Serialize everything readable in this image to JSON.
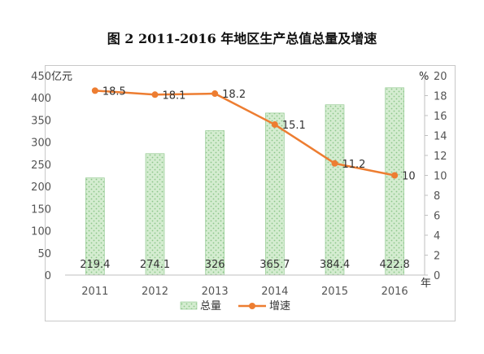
{
  "title": "图 2   2011-2016 年地区生产总值总量及增速",
  "chart_data": {
    "type": "bar",
    "categories": [
      "2011",
      "2012",
      "2013",
      "2014",
      "2015",
      "2016"
    ],
    "series": [
      {
        "name": "总量",
        "type": "bar",
        "axis": "left",
        "values": [
          219.4,
          274.1,
          326,
          365.7,
          384.4,
          422.8
        ],
        "labels": [
          "219.4",
          "274.1",
          "326",
          "365.7",
          "384.4",
          "422.8"
        ]
      },
      {
        "name": "增速",
        "type": "line",
        "axis": "right",
        "values": [
          18.5,
          18.1,
          18.2,
          15.1,
          11.2,
          10
        ],
        "labels": [
          "18.5",
          "18.1",
          "18.2",
          "15.1",
          "11.2",
          "10"
        ]
      }
    ],
    "y_left": {
      "unit": "亿元",
      "min": 0,
      "max": 450,
      "step": 50
    },
    "y_right": {
      "unit": "%",
      "min": 0,
      "max": 20,
      "step": 2
    },
    "x_unit": "年",
    "legend_position": "bottom",
    "colors": {
      "bar_fill": "#d4ecd0",
      "bar_dot": "#8cc68a",
      "line": "#ed7d31"
    }
  }
}
